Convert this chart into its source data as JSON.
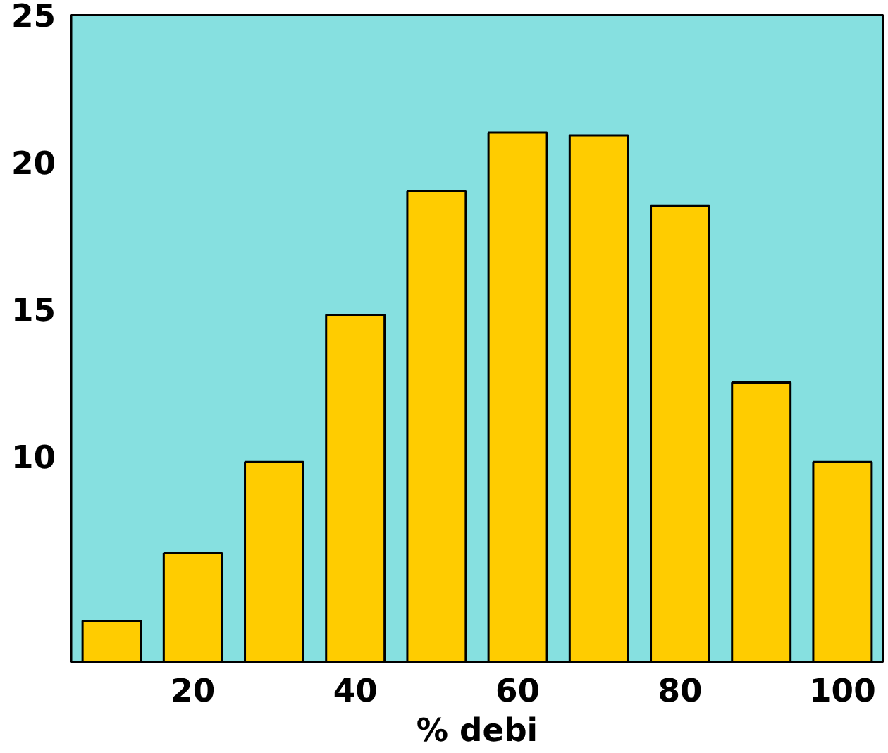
{
  "chart_data": {
    "type": "bar",
    "xlabel": "% debi",
    "x": [
      10,
      20,
      30,
      40,
      50,
      60,
      70,
      80,
      90,
      100
    ],
    "values": [
      4.4,
      6.7,
      9.8,
      14.8,
      19.0,
      21.0,
      20.9,
      18.5,
      12.5,
      9.8
    ],
    "color": "#ffcc00",
    "xlim": [
      5,
      105
    ],
    "xticks": [
      20,
      40,
      60,
      80,
      100
    ],
    "ylim": [
      3,
      25
    ],
    "yticks": [
      10,
      15,
      20,
      25
    ],
    "grid": false
  }
}
